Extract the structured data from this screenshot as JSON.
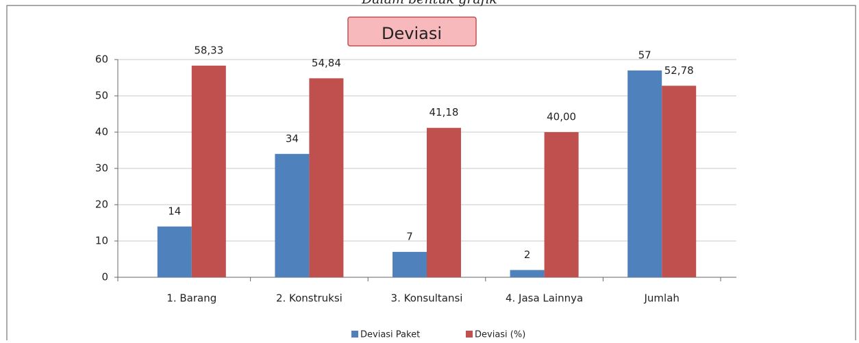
{
  "heading": "Dalam bentuk grafik",
  "chart_data": {
    "type": "bar",
    "title": "Deviasi",
    "categories": [
      "1. Barang",
      "2. Konstruksi",
      "3. Konsultansi",
      "4. Jasa Lainnya",
      "Jumlah"
    ],
    "series": [
      {
        "name": "Deviasi Paket",
        "color": "#4f81bd",
        "values": [
          14,
          34,
          7,
          2,
          57
        ]
      },
      {
        "name": "Deviasi (%)",
        "color": "#c0504d",
        "values": [
          58.33,
          54.84,
          41.18,
          40.0,
          52.78
        ],
        "value_labels": [
          "58,33",
          "54,84",
          "41,18",
          "40,00",
          "52,78"
        ]
      }
    ],
    "ylim": [
      0,
      60
    ],
    "yticks": [
      0,
      10,
      20,
      30,
      40,
      50,
      60
    ],
    "grid": true,
    "legend": "bottom"
  }
}
